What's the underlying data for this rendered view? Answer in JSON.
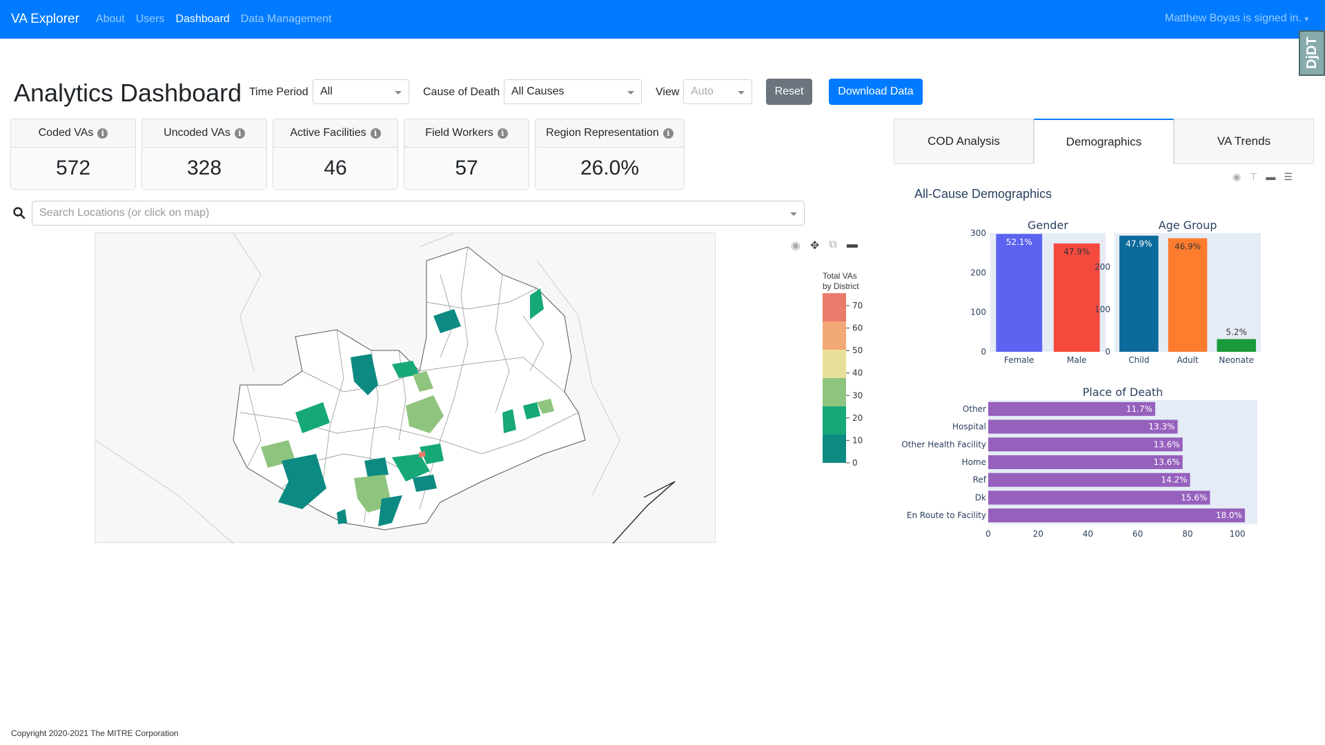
{
  "nav": {
    "brand": "VA Explorer",
    "links": [
      "About",
      "Users",
      "Dashboard",
      "Data Management"
    ],
    "active": "Dashboard",
    "user": "Matthew Boyas is signed in.",
    "djdt": "DjDT"
  },
  "page": {
    "title": "Analytics Dashboard"
  },
  "filters": {
    "time_period_label": "Time Period",
    "time_period_value": "All",
    "cod_label": "Cause of Death",
    "cod_value": "All Causes",
    "view_label": "View",
    "view_value": "Auto"
  },
  "buttons": {
    "reset": "Reset",
    "download": "Download Data"
  },
  "colors": {
    "primary": "#007bff",
    "secondary": "#6c757d",
    "female": "#5b63f0",
    "male": "#f44a3d",
    "child": "#0d6b9c",
    "adult": "#fd7c2e",
    "neonate": "#1a9a3a",
    "place": "#9660bd",
    "plot_bg": "#e5ecf6"
  },
  "cards": [
    {
      "label": "Coded VAs",
      "value": "572"
    },
    {
      "label": "Uncoded VAs",
      "value": "328"
    },
    {
      "label": "Active Facilities",
      "value": "46"
    },
    {
      "label": "Field Workers",
      "value": "57"
    },
    {
      "label": "Region Representation",
      "value": "26.0%"
    }
  ],
  "search": {
    "placeholder": "Search Locations (or click on map)"
  },
  "map": {
    "legend_title_1": "Total VAs",
    "legend_title_2": "by District",
    "legend_ticks": [
      "70",
      "60",
      "50",
      "40",
      "30",
      "20",
      "10",
      "0"
    ],
    "legend_colors": [
      "#ea7a6a",
      "#f3a977",
      "#e8e09a",
      "#8fc47e",
      "#16a878",
      "#0d8a82"
    ]
  },
  "tabs": [
    "COD Analysis",
    "Demographics",
    "VA Trends"
  ],
  "active_tab": "Demographics",
  "demographics": {
    "title": "All-Cause Demographics"
  },
  "chart_data": [
    {
      "type": "bar",
      "title": "Gender",
      "categories": [
        "Female",
        "Male"
      ],
      "values": [
        298,
        274
      ],
      "labels": [
        "52.1%",
        "47.9%"
      ],
      "ylim": [
        0,
        300
      ],
      "yticks": [
        "0",
        "100",
        "200",
        "300"
      ]
    },
    {
      "type": "bar",
      "title": "Age Group",
      "categories": [
        "Child",
        "Adult",
        "Neonate"
      ],
      "values": [
        274,
        268,
        30
      ],
      "labels": [
        "47.9%",
        "46.9%",
        "5.2%"
      ],
      "ylim": [
        0,
        280
      ],
      "yticks": [
        "0",
        "100",
        "200"
      ]
    },
    {
      "type": "bar",
      "orientation": "horizontal",
      "title": "Place of Death",
      "categories": [
        "Other",
        "Hospital",
        "Other Health Facility",
        "Home",
        "Ref",
        "Dk",
        "En Route to Facility"
      ],
      "values": [
        67,
        76,
        78,
        78,
        81,
        89,
        103
      ],
      "labels": [
        "11.7%",
        "13.3%",
        "13.6%",
        "13.6%",
        "14.2%",
        "15.6%",
        "18.0%"
      ],
      "xlim": [
        0,
        108
      ],
      "xticks": [
        "0",
        "20",
        "40",
        "60",
        "80",
        "100"
      ]
    }
  ],
  "footer": {
    "copyright": "Copyright 2020-2021 The MITRE Corporation"
  }
}
